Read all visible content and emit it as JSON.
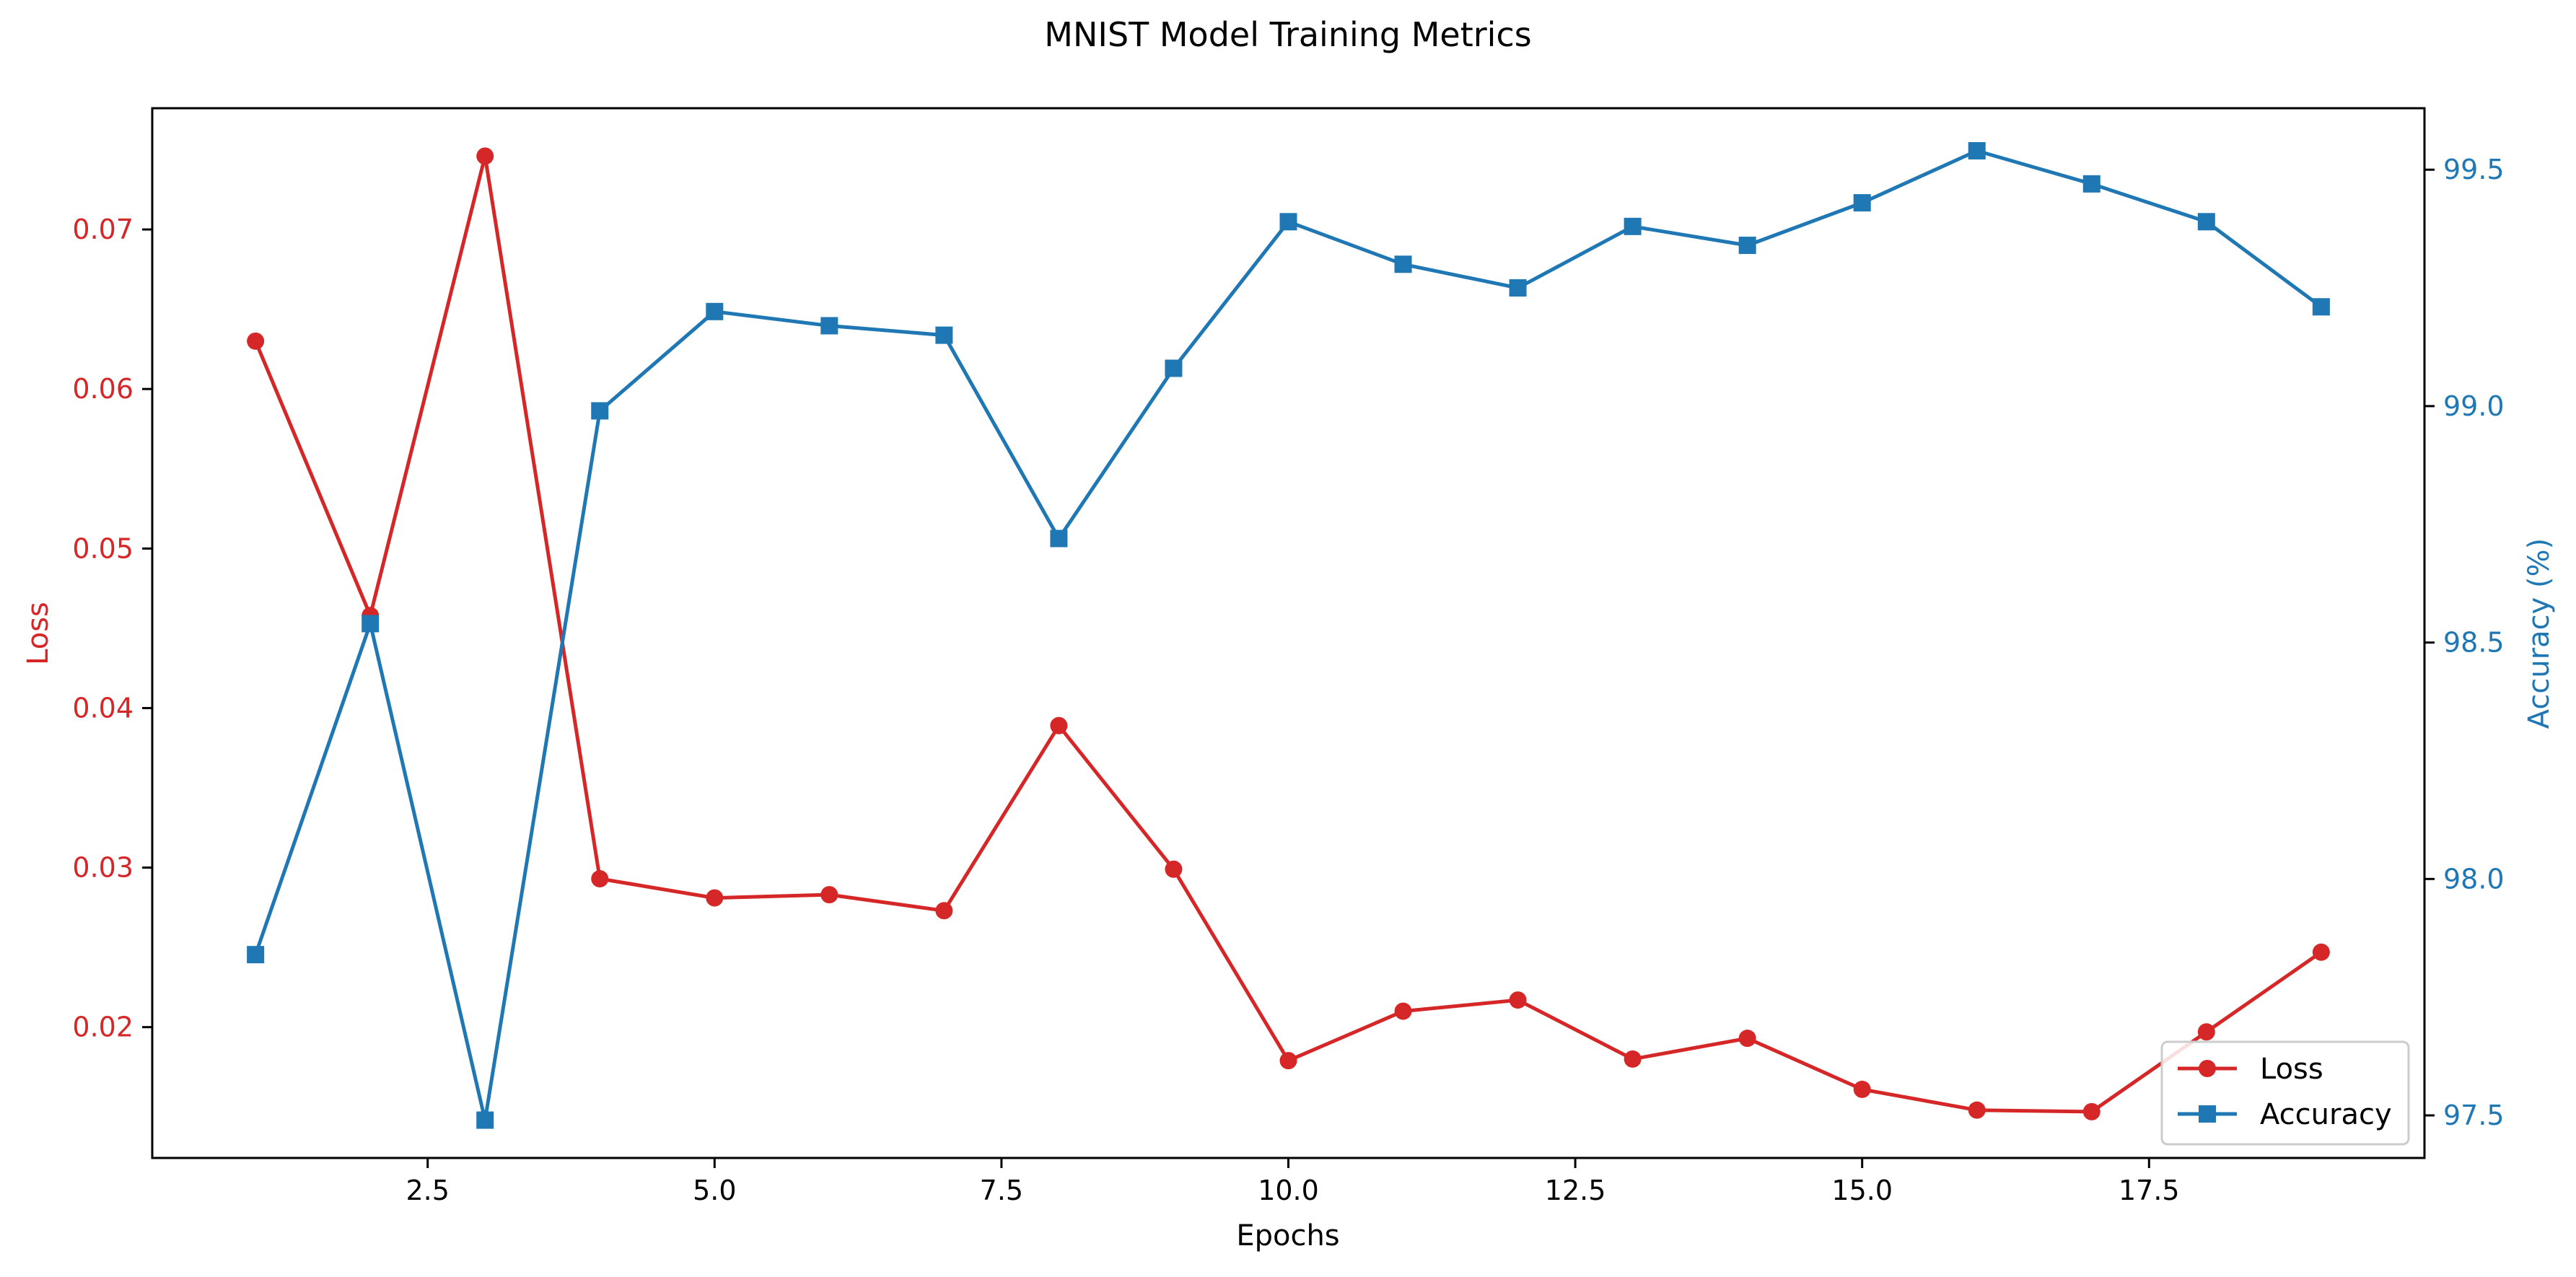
{
  "chart_data": {
    "type": "line",
    "title": "MNIST Model Training Metrics",
    "xlabel": "Epochs",
    "ylabel_left": "Loss",
    "ylabel_right": "Accuracy (%)",
    "x": [
      1,
      2,
      3,
      4,
      5,
      6,
      7,
      8,
      9,
      10,
      11,
      12,
      13,
      14,
      15,
      16,
      17,
      18,
      19
    ],
    "xlim": [
      0.1,
      19.9
    ],
    "ylim_left": [
      0.0118,
      0.0776
    ],
    "ylim_right": [
      97.41,
      99.63
    ],
    "xticks": [
      2.5,
      5.0,
      7.5,
      10.0,
      12.5,
      15.0,
      17.5
    ],
    "xtick_labels": [
      "2.5",
      "5.0",
      "7.5",
      "10.0",
      "12.5",
      "15.0",
      "17.5"
    ],
    "yticks_left": [
      0.02,
      0.03,
      0.04,
      0.05,
      0.06,
      0.07
    ],
    "ytick_labels_left": [
      "0.02",
      "0.03",
      "0.04",
      "0.05",
      "0.06",
      "0.07"
    ],
    "yticks_right": [
      97.5,
      98.0,
      98.5,
      99.0,
      99.5
    ],
    "ytick_labels_right": [
      "97.5",
      "98.0",
      "98.5",
      "99.0",
      "99.5"
    ],
    "grid": false,
    "legend_position": "bottom-right",
    "series": [
      {
        "name": "Loss",
        "axis": "left",
        "color": "#d62728",
        "marker": "circle",
        "values": [
          0.063,
          0.0458,
          0.0746,
          0.0293,
          0.0281,
          0.0283,
          0.0273,
          0.0389,
          0.0299,
          0.0179,
          0.021,
          0.0217,
          0.018,
          0.0193,
          0.0161,
          0.0148,
          0.0147,
          0.0197,
          0.0247
        ]
      },
      {
        "name": "Accuracy",
        "axis": "right",
        "color": "#1f77b4",
        "marker": "square",
        "values": [
          97.84,
          98.54,
          97.49,
          98.99,
          99.2,
          99.17,
          99.15,
          98.72,
          99.08,
          99.39,
          99.3,
          99.25,
          99.38,
          99.34,
          99.43,
          99.54,
          99.47,
          99.39,
          99.21
        ]
      }
    ]
  }
}
